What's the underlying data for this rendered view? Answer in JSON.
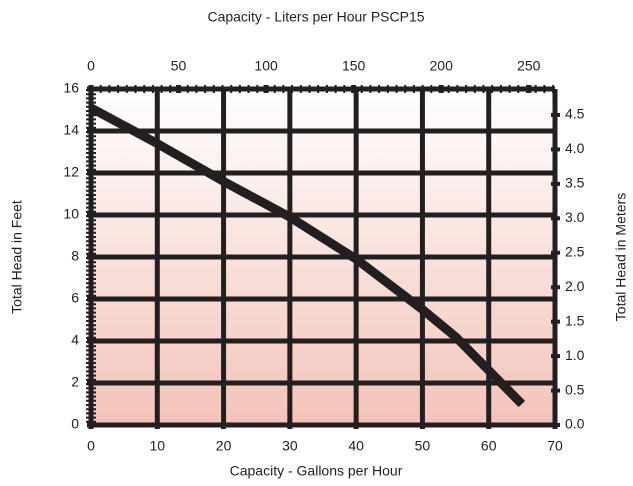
{
  "chart_data": {
    "type": "line",
    "title": "Capacity - Liters per Hour PSCP15",
    "x_label": "Capacity - Gallons per Hour",
    "y_label": "Total Head in Feet",
    "y2_label": "Total Head in Meters",
    "x": [
      0,
      10,
      20,
      30,
      40,
      50,
      55,
      60,
      65
    ],
    "series": [
      {
        "color": "#231f20",
        "values": [
          15.1,
          13.4,
          11.6,
          9.9,
          7.9,
          5.5,
          4.2,
          2.6,
          1.0
        ]
      }
    ],
    "xlim": [
      0,
      70
    ],
    "xticks": [
      0,
      10,
      20,
      30,
      40,
      50,
      60,
      70
    ],
    "ylim": [
      0,
      16
    ],
    "yticks": [
      0,
      2,
      4,
      6,
      8,
      10,
      12,
      14,
      16
    ],
    "x2lim": [
      0,
      265
    ],
    "x2ticks": [
      0,
      50,
      100,
      150,
      200,
      250
    ],
    "y2lim": [
      0,
      4.877
    ],
    "y2ticks": [
      {
        "value": 0,
        "label": "0.0"
      },
      0.5,
      {
        "value": 1,
        "label": "1.0"
      },
      1.5,
      {
        "value": 2,
        "label": "2.0"
      },
      2.5,
      {
        "value": 3,
        "label": "3.0"
      },
      3.5,
      {
        "value": 4,
        "label": "4.0"
      },
      4.5
    ],
    "grid": true,
    "grid_color": "#231f20"
  }
}
